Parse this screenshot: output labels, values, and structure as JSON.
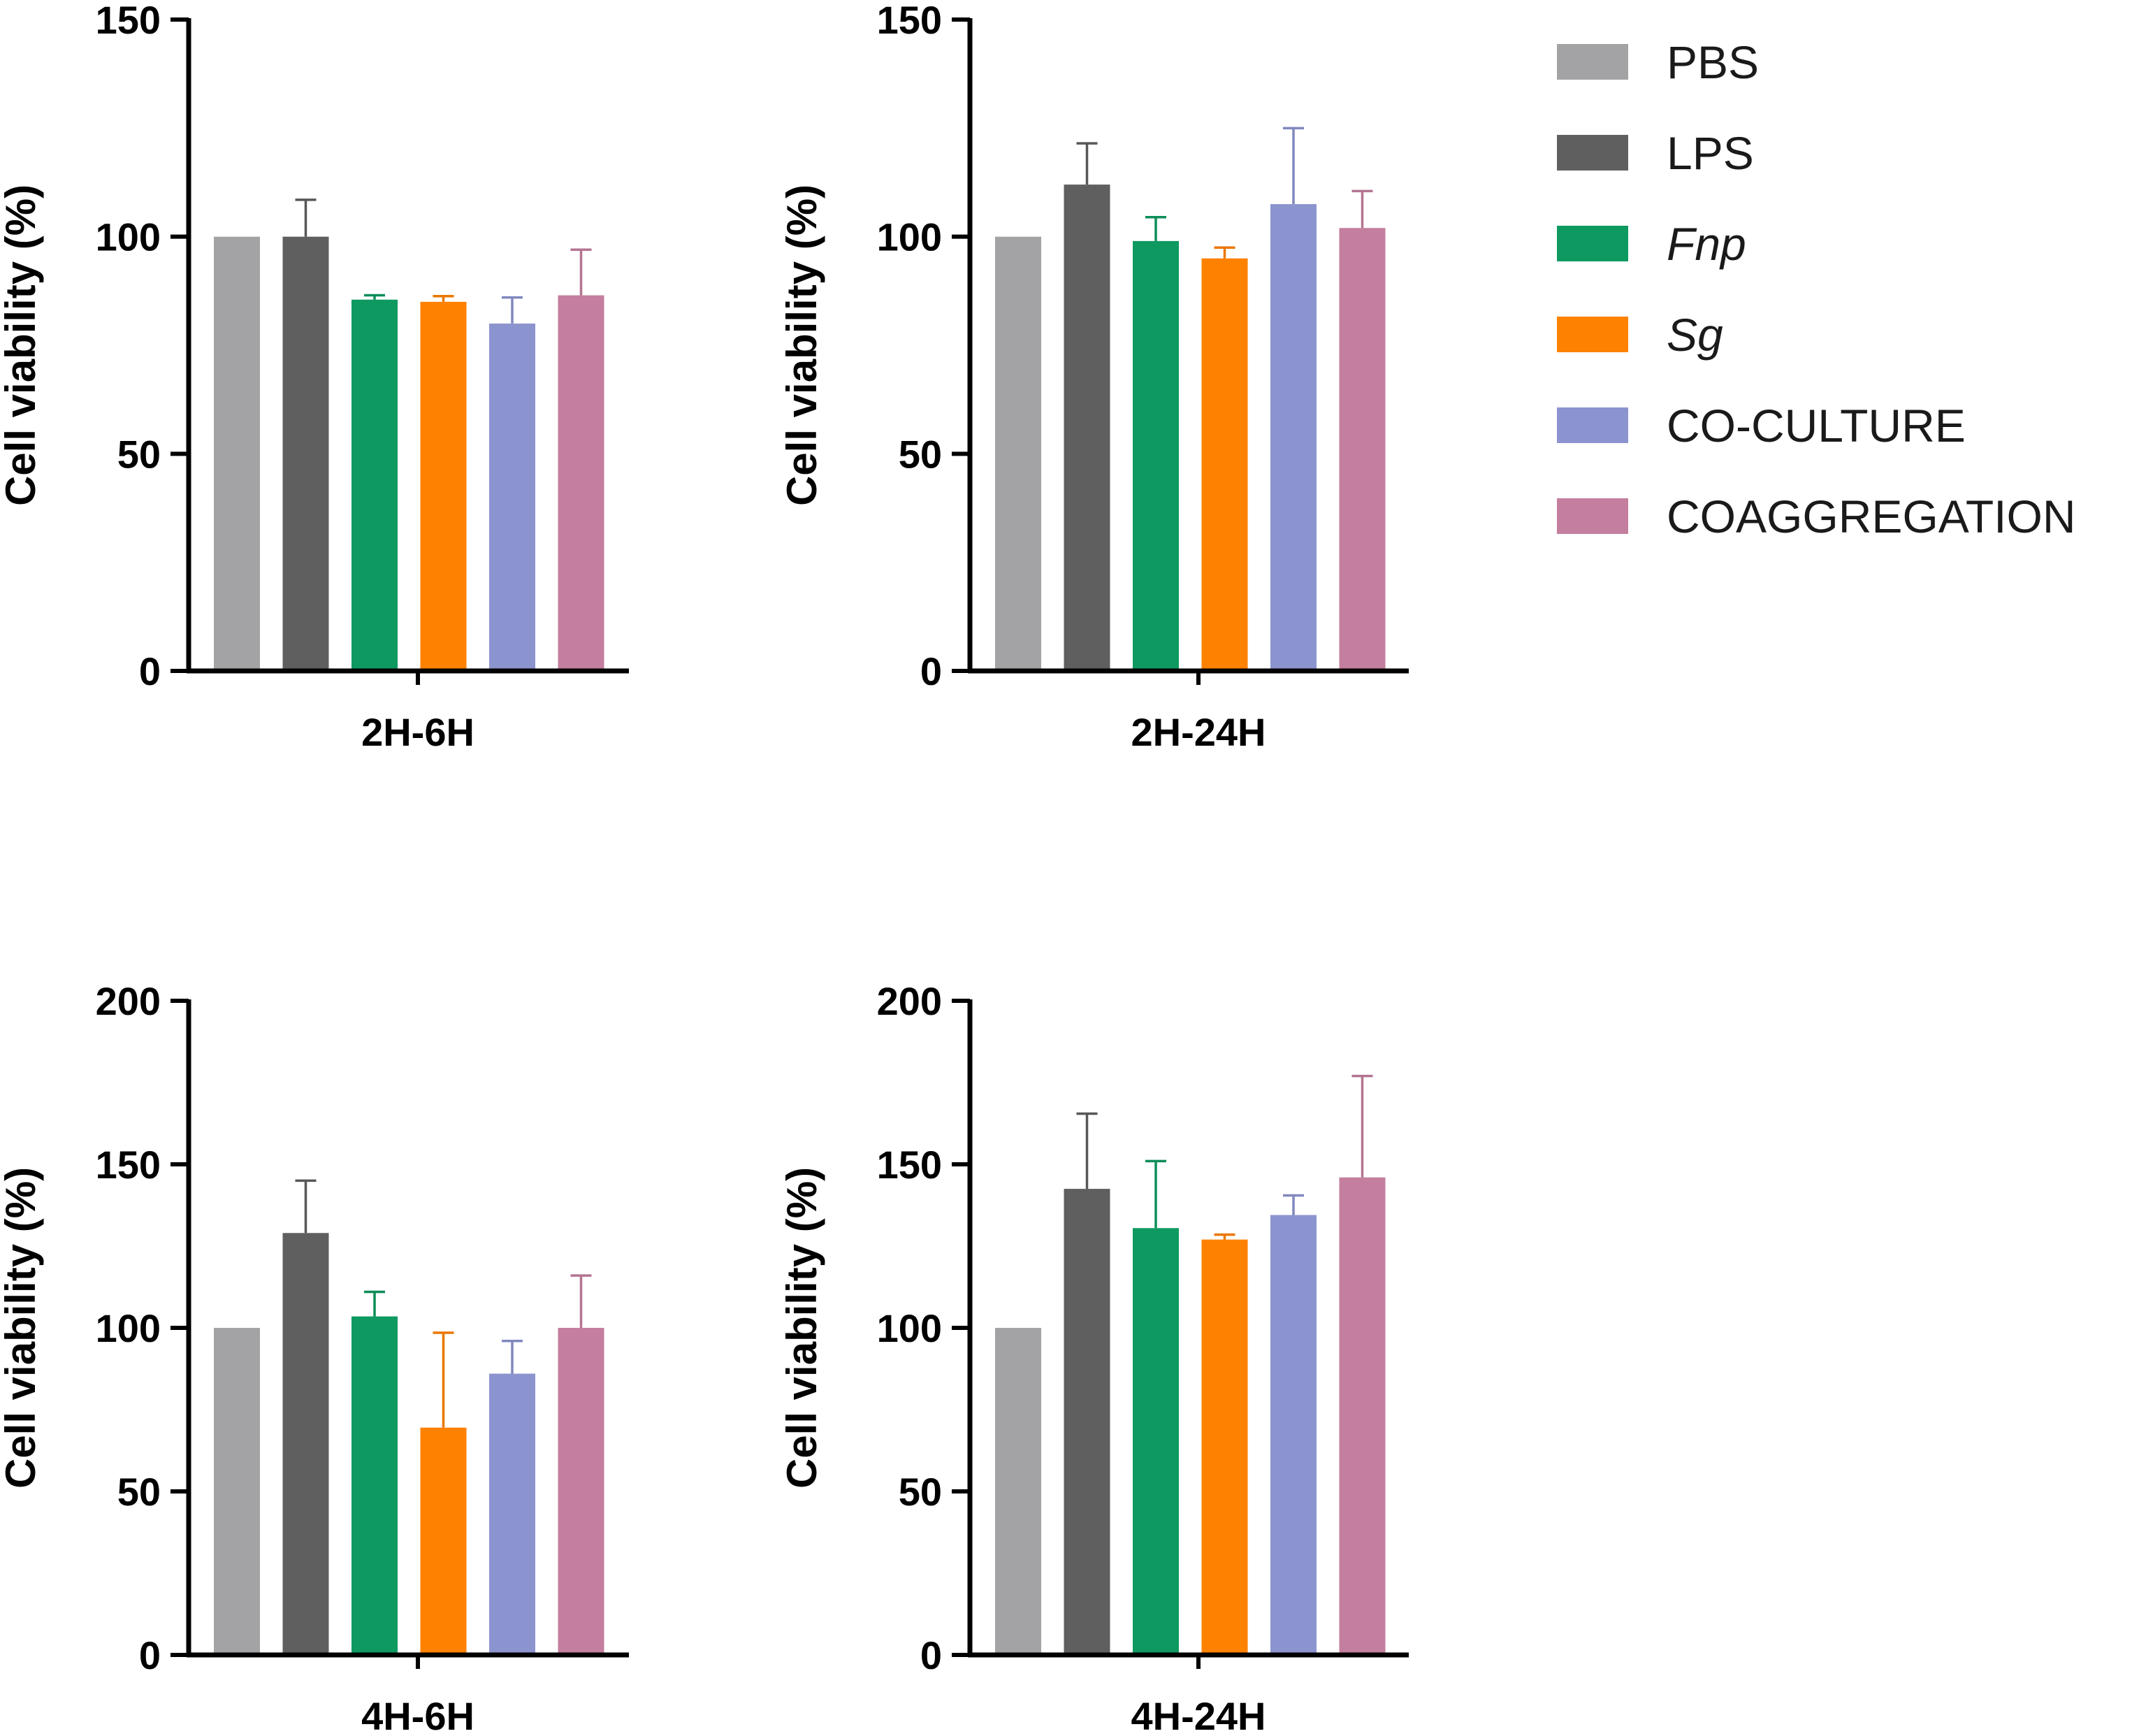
{
  "legend": [
    {
      "label": "PBS",
      "color": "#a3a3a6",
      "italic": false
    },
    {
      "label": "LPS",
      "color": "#5f5f5f",
      "italic": false
    },
    {
      "label": "Fnp",
      "color": "#0e9960",
      "italic": true
    },
    {
      "label": "Sg",
      "color": "#ff8100",
      "italic": true
    },
    {
      "label": "CO-CULTURE",
      "color": "#8c94cf",
      "italic": false
    },
    {
      "label": "COAGGREGATION",
      "color": "#c47e9e",
      "italic": false
    }
  ],
  "chart_data": [
    {
      "type": "bar",
      "ylabel": "Cell viability (%)",
      "xlabel": "2H-6H",
      "ylim": [
        0,
        150
      ],
      "yticks": [
        0,
        50,
        100,
        150
      ],
      "series": [
        {
          "name": "PBS",
          "value": 100,
          "error": 0
        },
        {
          "name": "LPS",
          "value": 100,
          "error": 8.5
        },
        {
          "name": "Fnp",
          "value": 85.5,
          "error": 1
        },
        {
          "name": "Sg",
          "value": 85,
          "error": 1.3
        },
        {
          "name": "CO-CULTURE",
          "value": 80,
          "error": 6
        },
        {
          "name": "COAGGREGATION",
          "value": 86.5,
          "error": 10.5
        }
      ]
    },
    {
      "type": "bar",
      "ylabel": "Cell viability (%)",
      "xlabel": "2H-24H",
      "ylim": [
        0,
        150
      ],
      "yticks": [
        0,
        50,
        100,
        150
      ],
      "series": [
        {
          "name": "PBS",
          "value": 100,
          "error": 0
        },
        {
          "name": "LPS",
          "value": 112,
          "error": 9.5
        },
        {
          "name": "Fnp",
          "value": 99,
          "error": 5.5
        },
        {
          "name": "Sg",
          "value": 95,
          "error": 2.5
        },
        {
          "name": "CO-CULTURE",
          "value": 107.5,
          "error": 17.5
        },
        {
          "name": "COAGGREGATION",
          "value": 102,
          "error": 8.5
        }
      ]
    },
    {
      "type": "bar",
      "ylabel": "Cell viability (%)",
      "xlabel": "4H-6H",
      "ylim": [
        0,
        200
      ],
      "yticks": [
        0,
        50,
        100,
        150,
        200
      ],
      "series": [
        {
          "name": "PBS",
          "value": 100,
          "error": 0
        },
        {
          "name": "LPS",
          "value": 129,
          "error": 16
        },
        {
          "name": "Fnp",
          "value": 103.5,
          "error": 7.5
        },
        {
          "name": "Sg",
          "value": 69.5,
          "error": 29
        },
        {
          "name": "CO-CULTURE",
          "value": 86,
          "error": 10
        },
        {
          "name": "COAGGREGATION",
          "value": 100,
          "error": 16
        }
      ]
    },
    {
      "type": "bar",
      "ylabel": "Cell viability (%)",
      "xlabel": "4H-24H",
      "ylim": [
        0,
        200
      ],
      "yticks": [
        0,
        50,
        100,
        150,
        200
      ],
      "series": [
        {
          "name": "PBS",
          "value": 100,
          "error": 0
        },
        {
          "name": "LPS",
          "value": 142.5,
          "error": 23
        },
        {
          "name": "Fnp",
          "value": 130.5,
          "error": 20.5
        },
        {
          "name": "Sg",
          "value": 127,
          "error": 1.5
        },
        {
          "name": "CO-CULTURE",
          "value": 134.5,
          "error": 6
        },
        {
          "name": "COAGGREGATION",
          "value": 146,
          "error": 31
        }
      ]
    }
  ]
}
